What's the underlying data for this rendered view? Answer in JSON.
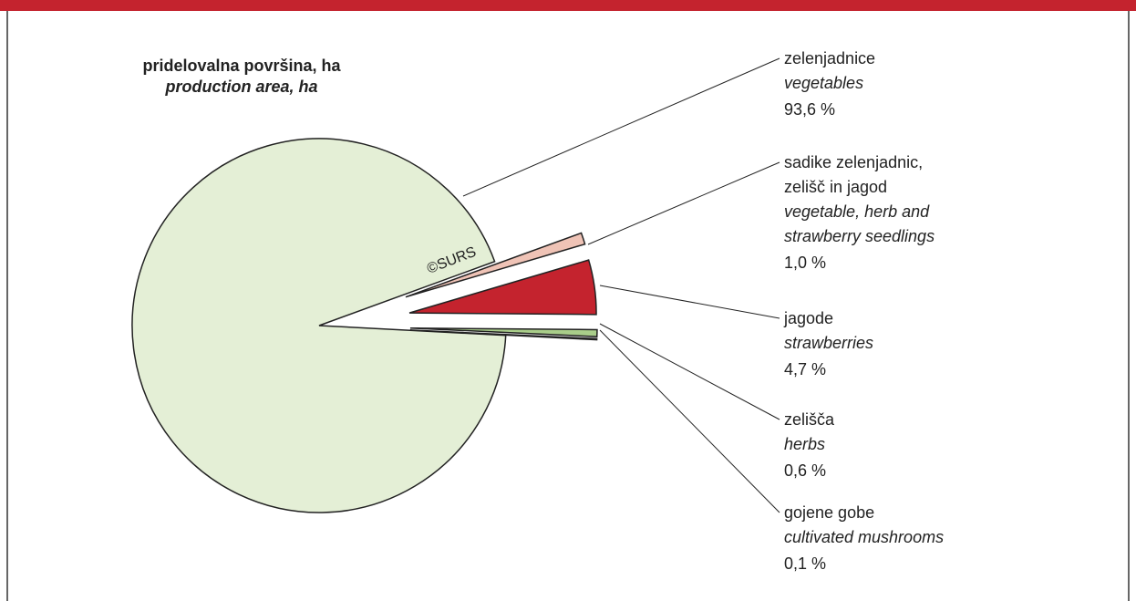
{
  "chart_data": {
    "type": "pie",
    "title": "pridelovalna površina, ha",
    "subtitle": "production area, ha",
    "annotation": "©SURS",
    "categories": [
      "zelenjadnice",
      "sadike zelenjadnic,\nzelišč in jagod",
      "jagode",
      "zelišča",
      "gojene gobe"
    ],
    "categories_en": [
      "vegetables",
      "vegetable, herb and\nstrawberry seedlings",
      "strawberries",
      "herbs",
      "cultivated mushrooms"
    ],
    "values": [
      93.6,
      1.0,
      4.7,
      0.6,
      0.1
    ],
    "value_labels": [
      "93,6 %",
      "1,0 %",
      "4,7 %",
      "0,6 %",
      "0,1 %"
    ],
    "colors": [
      "#e4efd6",
      "#efc3b6",
      "#c4232e",
      "#a9cd8a",
      "#d9d9d9"
    ]
  }
}
